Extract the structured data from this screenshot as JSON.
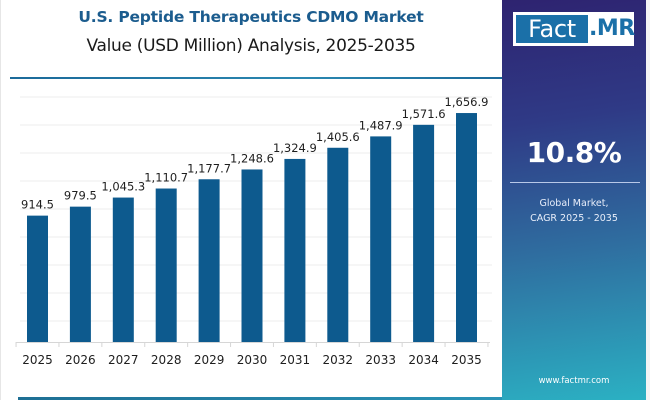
{
  "header": {
    "title": "U.S. Peptide Therapeutics CDMO Market",
    "subtitle": "Value (USD Million) Analysis, 2025-2035"
  },
  "brand": {
    "logo_part1": "Fact",
    "logo_part2": ".MR",
    "website": "www.factmr.com",
    "colors": {
      "bar": "#0d5a8e",
      "title": "#1b5c8e",
      "logo": "#1b70a8"
    }
  },
  "summary": {
    "cagr_value": "10.8%",
    "cagr_line1": "Global Market,",
    "cagr_line2": "CAGR 2025 - 2035"
  },
  "chart_data": {
    "type": "bar",
    "title": "U.S. Peptide Therapeutics CDMO Market",
    "subtitle": "Value (USD Million) Analysis, 2025-2035",
    "xlabel": "",
    "ylabel": "",
    "categories": [
      "2025",
      "2026",
      "2027",
      "2028",
      "2029",
      "2030",
      "2031",
      "2032",
      "2033",
      "2034",
      "2035"
    ],
    "values": [
      914.5,
      979.5,
      1045.3,
      1110.7,
      1177.7,
      1248.6,
      1324.9,
      1405.6,
      1487.9,
      1571.6,
      1656.9
    ],
    "value_labels": [
      "914.5",
      "979.5",
      "1,045.3",
      "1,110.7",
      "1,177.7",
      "1,248.6",
      "1,324.9",
      "1,405.6",
      "1,487.9",
      "1,571.6",
      "1,656.9"
    ],
    "ylim": [
      0,
      1773
    ],
    "y_tick_labels_visible": false,
    "grid": true,
    "legend": "none"
  }
}
